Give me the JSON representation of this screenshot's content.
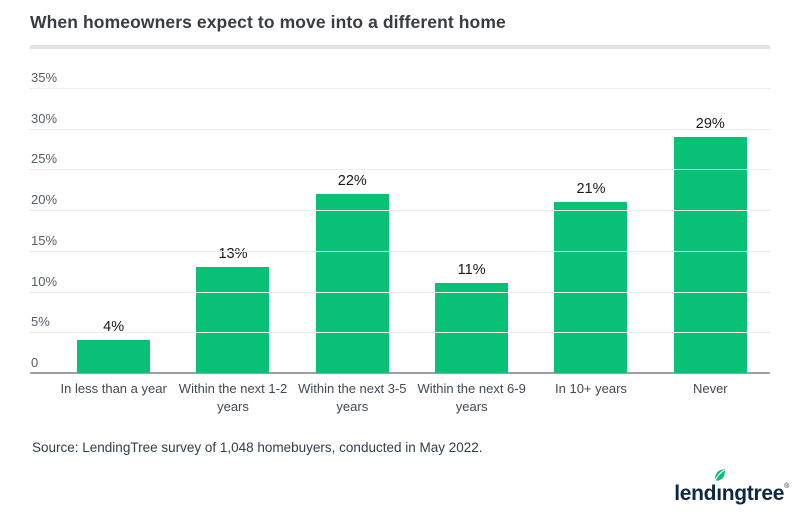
{
  "header": {
    "title": "When homeowners expect to move into a different home"
  },
  "chart_data": {
    "type": "bar",
    "title": "When homeowners expect to move into a different home",
    "categories": [
      "In less than a year",
      "Within the next 1-2\nyears",
      "Within the next 3-5\nyears",
      "Within the next 6-9\nyears",
      "In 10+ years",
      "Never"
    ],
    "values": [
      4,
      13,
      22,
      11,
      21,
      29
    ],
    "value_labels": [
      "4%",
      "13%",
      "22%",
      "11%",
      "21%",
      "29%"
    ],
    "xlabel": "",
    "ylabel": "",
    "ylim": [
      0,
      35
    ],
    "y_tick_values": [
      35,
      30,
      25,
      20,
      15,
      10,
      5,
      0
    ],
    "y_tick_labels": [
      "35%",
      "30%",
      "25%",
      "20%",
      "15%",
      "10%",
      "5%",
      "0"
    ],
    "grid": true,
    "legend_position": "none",
    "bar_color": "#08c177",
    "gridline_color": "#ededed",
    "baseline_color": "#9aa0a5"
  },
  "footer": {
    "source": "Source: LendingTree survey of 1,048 homebuyers, conducted in May 2022."
  },
  "logo": {
    "brand": "lendingtree",
    "text_before_leaf": "lend",
    "dotless_i": "ı",
    "text_after_leaf": "ngtree",
    "registered_mark": "®",
    "leaf_icon_color": "#08c177",
    "navy_color": "#0d2840"
  }
}
